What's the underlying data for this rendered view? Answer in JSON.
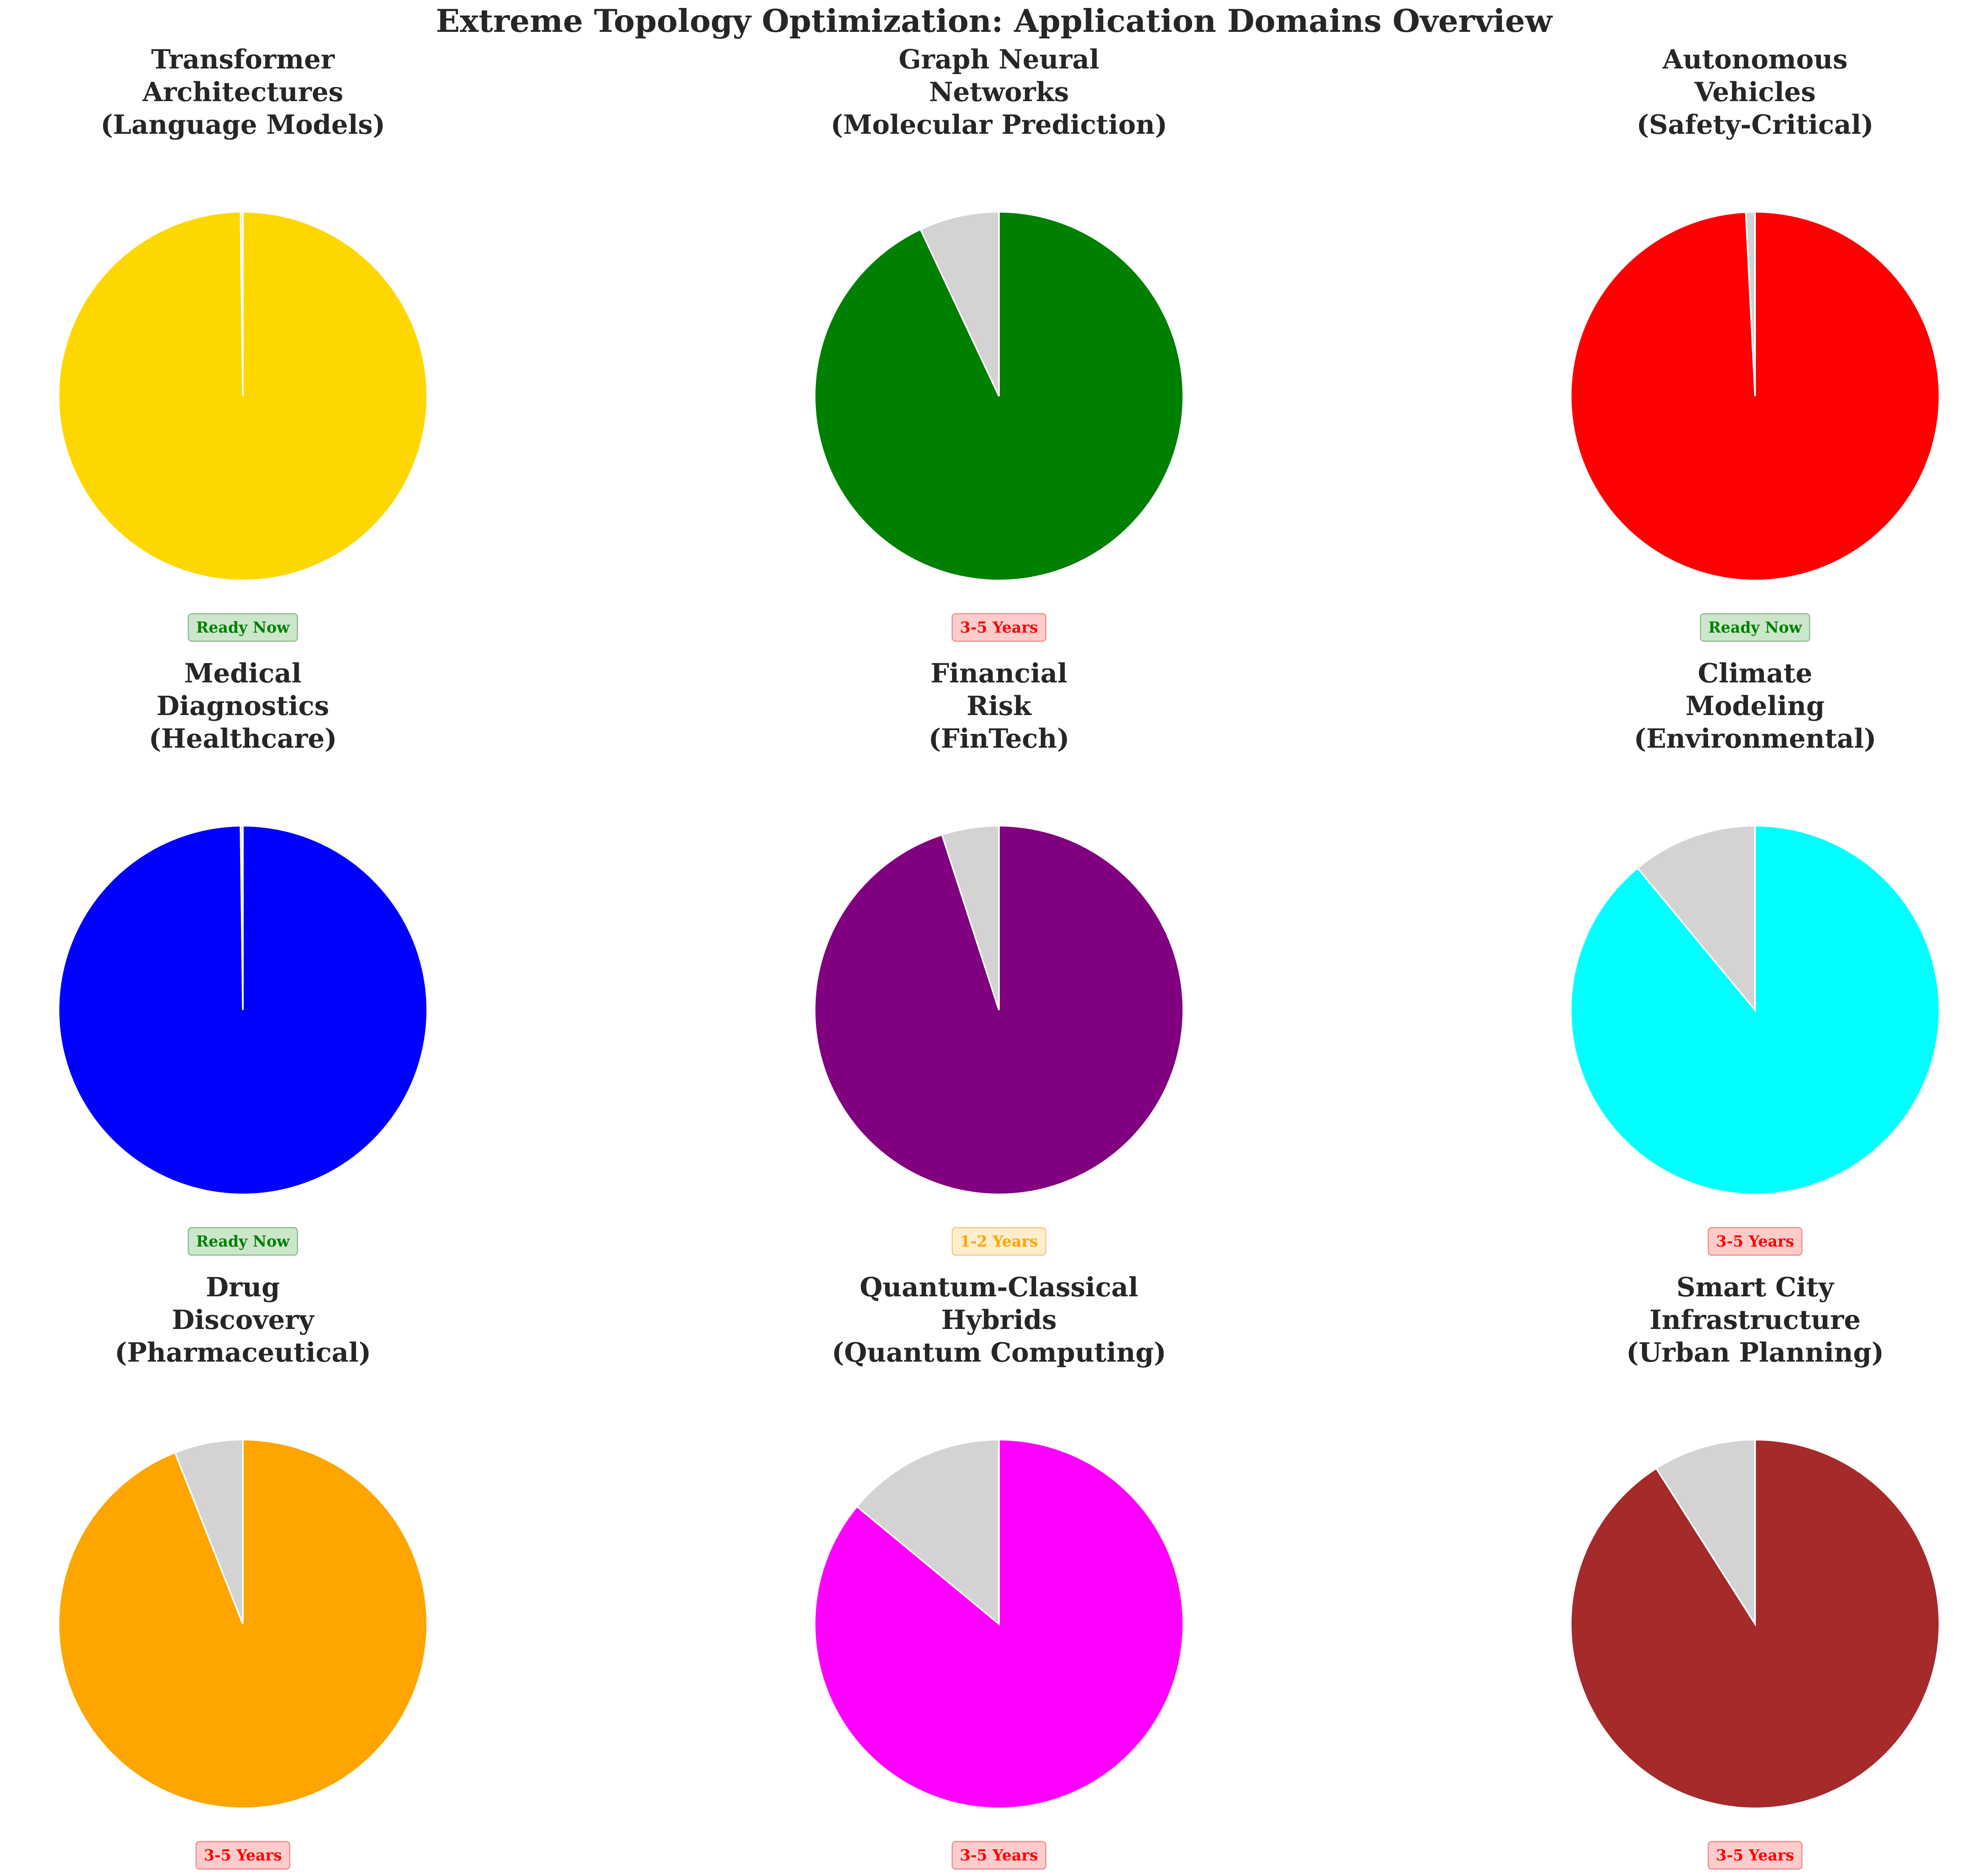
{
  "title": "Extreme Topology Optimization: Application Domains Overview",
  "chart_data": [
    {
      "type": "pie",
      "title_lines": [
        "Transformer",
        "Architectures",
        "(Language Models)"
      ],
      "values": [
        99.8,
        0.2
      ],
      "colors": [
        "#ffd700",
        "#d3d3d3"
      ],
      "badge": "Ready Now",
      "badge_style": "ready"
    },
    {
      "type": "pie",
      "title_lines": [
        "Graph Neural",
        "Networks",
        "(Molecular Prediction)"
      ],
      "values": [
        93,
        7
      ],
      "colors": [
        "#008000",
        "#d3d3d3"
      ],
      "badge": "3-5 Years",
      "badge_style": "far"
    },
    {
      "type": "pie",
      "title_lines": [
        "Autonomous",
        "Vehicles",
        "(Safety-Critical)"
      ],
      "values": [
        99.2,
        0.8
      ],
      "colors": [
        "#ff0000",
        "#d3d3d3"
      ],
      "badge": "Ready Now",
      "badge_style": "ready"
    },
    {
      "type": "pie",
      "title_lines": [
        "Medical",
        "Diagnostics",
        "(Healthcare)"
      ],
      "values": [
        99.8,
        0.2
      ],
      "colors": [
        "#0000ff",
        "#d3d3d3"
      ],
      "badge": "Ready Now",
      "badge_style": "ready"
    },
    {
      "type": "pie",
      "title_lines": [
        "Financial",
        "Risk",
        "(FinTech)"
      ],
      "values": [
        95,
        5
      ],
      "colors": [
        "#800080",
        "#d3d3d3"
      ],
      "badge": "1-2 Years",
      "badge_style": "mid"
    },
    {
      "type": "pie",
      "title_lines": [
        "Climate",
        "Modeling",
        "(Environmental)"
      ],
      "values": [
        89,
        11
      ],
      "colors": [
        "#00ffff",
        "#d3d3d3"
      ],
      "badge": "3-5 Years",
      "badge_style": "far"
    },
    {
      "type": "pie",
      "title_lines": [
        "Drug",
        "Discovery",
        "(Pharmaceutical)"
      ],
      "values": [
        94,
        6
      ],
      "colors": [
        "#ffa500",
        "#d3d3d3"
      ],
      "badge": "3-5 Years",
      "badge_style": "far"
    },
    {
      "type": "pie",
      "title_lines": [
        "Quantum-Classical",
        "Hybrids",
        "(Quantum Computing)"
      ],
      "values": [
        86,
        14
      ],
      "colors": [
        "#ff00ff",
        "#d3d3d3"
      ],
      "badge": "3-5 Years",
      "badge_style": "far"
    },
    {
      "type": "pie",
      "title_lines": [
        "Smart City",
        "Infrastructure",
        "(Urban Planning)"
      ],
      "values": [
        91,
        9
      ],
      "colors": [
        "#a52a2a",
        "#d3d3d3"
      ],
      "badge": "3-5 Years",
      "badge_style": "far"
    }
  ]
}
